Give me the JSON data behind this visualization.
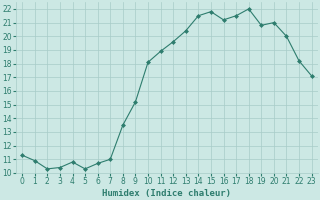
{
  "x": [
    0,
    1,
    2,
    3,
    4,
    5,
    6,
    7,
    8,
    9,
    10,
    11,
    12,
    13,
    14,
    15,
    16,
    17,
    18,
    19,
    20,
    21,
    22,
    23
  ],
  "y": [
    11.3,
    10.9,
    10.3,
    10.4,
    10.8,
    10.3,
    10.7,
    11.0,
    13.5,
    15.2,
    18.1,
    18.9,
    19.6,
    20.4,
    21.5,
    21.8,
    21.2,
    21.5,
    22.0,
    20.8,
    21.0,
    20.0,
    18.2,
    17.1
  ],
  "xlabel": "Humidex (Indice chaleur)",
  "line_color": "#2e7d6e",
  "marker": "D",
  "marker_size": 2,
  "bg_color": "#cce8e4",
  "grid_color": "#a8ccc8",
  "ylim": [
    10,
    22.5
  ],
  "xlim": [
    -0.5,
    23.5
  ],
  "yticks": [
    10,
    11,
    12,
    13,
    14,
    15,
    16,
    17,
    18,
    19,
    20,
    21,
    22
  ],
  "xticks": [
    0,
    1,
    2,
    3,
    4,
    5,
    6,
    7,
    8,
    9,
    10,
    11,
    12,
    13,
    14,
    15,
    16,
    17,
    18,
    19,
    20,
    21,
    22,
    23
  ],
  "tick_fontsize": 5.5,
  "xlabel_fontsize": 6.5
}
